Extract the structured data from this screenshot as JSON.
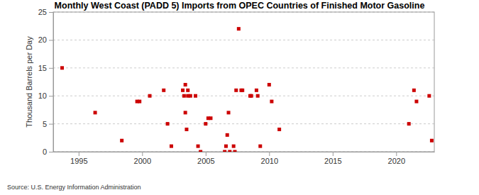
{
  "chart_data": {
    "type": "scatter",
    "title": "Monthly West Coast (PADD 5) Imports from OPEC Countries of Finished Motor Gasoline",
    "y_label": "Thousand Barrels per Day",
    "source": "Source: U.S. Energy Information Administration",
    "color": "#cc0000",
    "marker": "square",
    "grid": true,
    "x": [
      1993.7,
      1996.3,
      1998.4,
      1999.6,
      1999.8,
      2000.6,
      2001.7,
      2002.0,
      2002.3,
      2003.2,
      2003.3,
      2003.4,
      2003.4,
      2003.5,
      2003.6,
      2003.6,
      2003.8,
      2004.2,
      2004.4,
      2004.6,
      2005.0,
      2005.2,
      2005.4,
      2006.5,
      2006.6,
      2006.7,
      2006.8,
      2006.9,
      2007.2,
      2007.3,
      2007.4,
      2007.6,
      2007.8,
      2007.9,
      2008.5,
      2008.6,
      2009.0,
      2009.1,
      2009.3,
      2010.0,
      2010.2,
      2010.8,
      2021.0,
      2021.4,
      2021.6,
      2022.6,
      2022.8
    ],
    "values": [
      15,
      7,
      2,
      9,
      9,
      10,
      11,
      5,
      1,
      11,
      10,
      12,
      7,
      4,
      11,
      10,
      10,
      10,
      1,
      0,
      5,
      6,
      6,
      0,
      1,
      3,
      7,
      0,
      1,
      0,
      11,
      22,
      11,
      11,
      10,
      10,
      11,
      10,
      1,
      12,
      9,
      4,
      5,
      11,
      9,
      10,
      2
    ],
    "xlim": [
      1993,
      2023
    ],
    "xticks": [
      1995,
      2000,
      2005,
      2010,
      2015,
      2020
    ],
    "ylim": [
      0,
      25
    ],
    "yticks": [
      0,
      5,
      10,
      15,
      20,
      25
    ]
  }
}
